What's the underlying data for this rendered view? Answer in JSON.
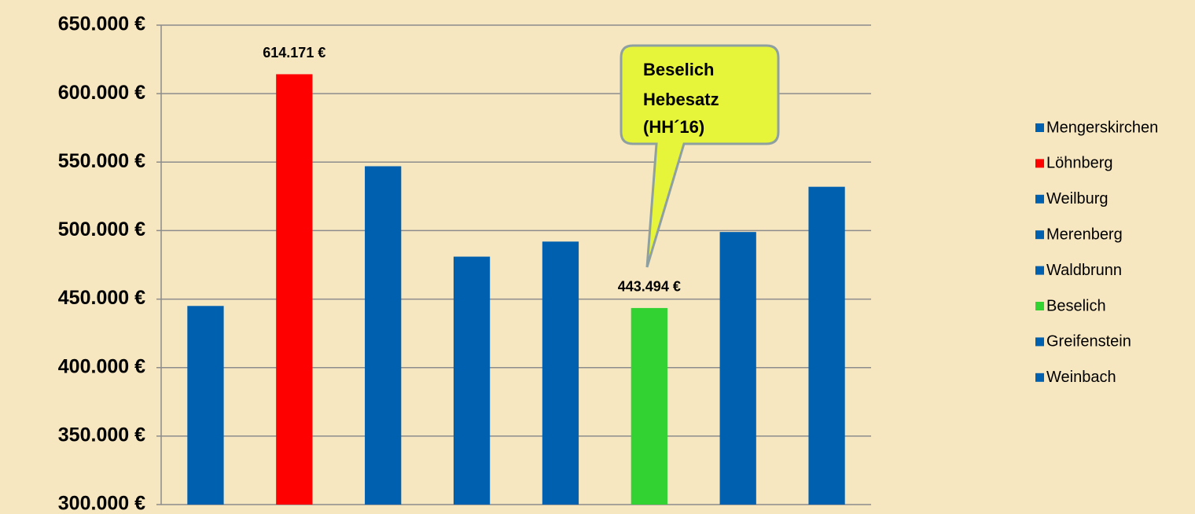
{
  "chart_data": {
    "type": "bar",
    "categories": [
      "Mengerskirchen",
      "Löhnberg",
      "Weilburg",
      "Merenberg",
      "Waldbrunn",
      "Beselich",
      "Greifenstein",
      "Weinbach"
    ],
    "values": [
      445000,
      614171,
      547000,
      481000,
      492000,
      443494,
      499000,
      532000
    ],
    "value_labels": [
      null,
      "614.171 €",
      null,
      null,
      null,
      "443.494 €",
      null,
      null
    ],
    "colors": [
      "#0060b0",
      "#ff0000",
      "#0060b0",
      "#0060b0",
      "#0060b0",
      "#33d233",
      "#0060b0",
      "#0060b0"
    ],
    "ylim": [
      300000,
      650000
    ],
    "yticks": [
      {
        "value": 300000,
        "label": "300.000 €"
      },
      {
        "value": 350000,
        "label": "350.000 €"
      },
      {
        "value": 400000,
        "label": "400.000 €"
      },
      {
        "value": 450000,
        "label": "450.000 €"
      },
      {
        "value": 500000,
        "label": "500.000 €"
      },
      {
        "value": 550000,
        "label": "550.000 €"
      },
      {
        "value": 600000,
        "label": "600.000 €"
      },
      {
        "value": 650000,
        "label": "650.000 €"
      }
    ],
    "grid": true,
    "legend": "right",
    "annotation": [
      "Beselich",
      "Hebesatz",
      "(HH´16)"
    ]
  }
}
